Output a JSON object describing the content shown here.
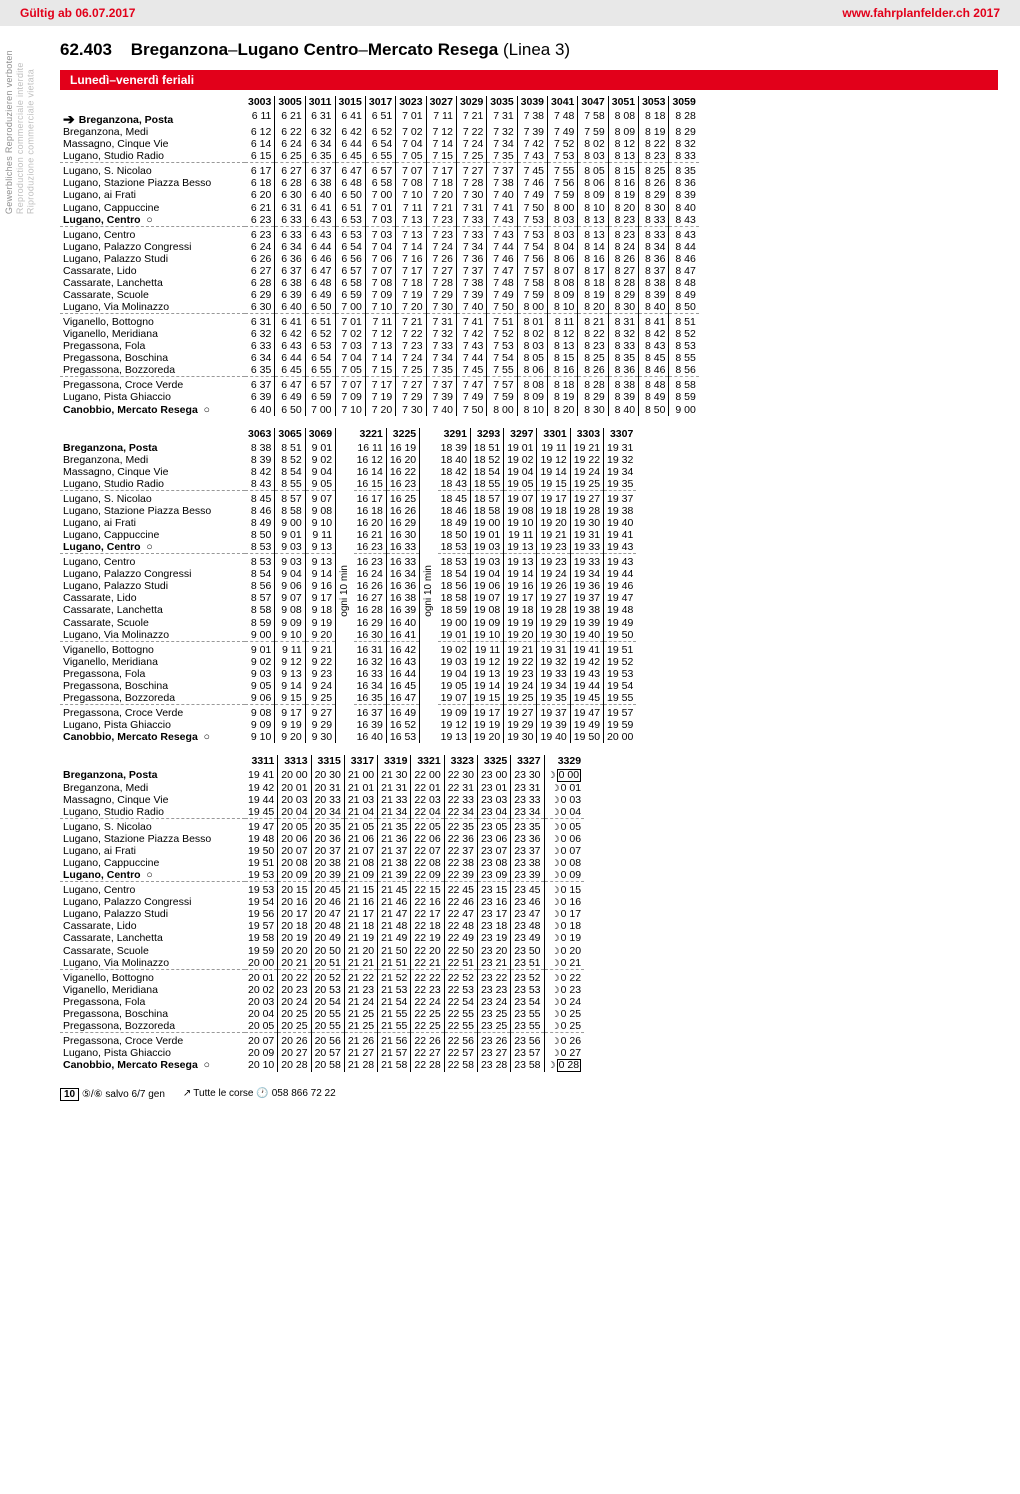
{
  "header": {
    "validity": "Gültig ab 06.07.2017",
    "url": "www.fahrplanfelder.ch 2017"
  },
  "side": {
    "de": "Gewerbliches Reproduzieren verboten",
    "fr": "Reproduction commerciale interdite",
    "it": "Riproduzione commerciale vietata"
  },
  "line": {
    "number": "62.403",
    "name_bold1": "Breganzona",
    "dash": "–",
    "name_bold2": "Lugano Centro",
    "dash2": "–",
    "name_bold3": "Mercato Resega",
    "suffix": " (Linea 3)"
  },
  "day_heading": "Lunedì–venerdì feriali",
  "stops": [
    {
      "name": "Breganzona, Posta",
      "bold": true,
      "first": true,
      "arrow": true
    },
    {
      "name": "Breganzona, Medi"
    },
    {
      "name": "Massagno, Cinque Vie"
    },
    {
      "name": "Lugano, Studio Radio"
    },
    {
      "name": "Lugano, S. Nicolao",
      "sep": true
    },
    {
      "name": "Lugano, Stazione Piazza Besso"
    },
    {
      "name": "Lugano, ai Frati"
    },
    {
      "name": "Lugano, Cappuccine"
    },
    {
      "name": "Lugano, Centro",
      "bold": true,
      "circ": true
    },
    {
      "name": "Lugano, Centro",
      "sep": true
    },
    {
      "name": "Lugano, Palazzo Congressi"
    },
    {
      "name": "Lugano, Palazzo Studi"
    },
    {
      "name": "Cassarate, Lido"
    },
    {
      "name": "Cassarate, Lanchetta"
    },
    {
      "name": "Cassarate, Scuole"
    },
    {
      "name": "Lugano, Via Molinazzo"
    },
    {
      "name": "Viganello, Bottogno",
      "sep": true
    },
    {
      "name": "Viganello, Meridiana"
    },
    {
      "name": "Pregassona, Fola"
    },
    {
      "name": "Pregassona, Boschina"
    },
    {
      "name": "Pregassona, Bozzoreda"
    },
    {
      "name": "Pregassona, Croce Verde",
      "sep": true
    },
    {
      "name": "Lugano, Pista Ghiaccio"
    },
    {
      "name": "Canobbio, Mercato Resega",
      "bold": true,
      "circ": true
    }
  ],
  "block1": {
    "cols": [
      "3003",
      "3005",
      "3011",
      "3015",
      "3017",
      "3023",
      "3027",
      "3029",
      "3035",
      "3039",
      "3041",
      "3047",
      "3051",
      "3053",
      "3059"
    ],
    "rows": [
      [
        "6 11",
        "6 21",
        "6 31",
        "6 41",
        "6 51",
        "7 01",
        "7 11",
        "7 21",
        "7 31",
        "7 38",
        "7 48",
        "7 58",
        "8 08",
        "8 18",
        "8 28"
      ],
      [
        "6 12",
        "6 22",
        "6 32",
        "6 42",
        "6 52",
        "7 02",
        "7 12",
        "7 22",
        "7 32",
        "7 39",
        "7 49",
        "7 59",
        "8 09",
        "8 19",
        "8 29"
      ],
      [
        "6 14",
        "6 24",
        "6 34",
        "6 44",
        "6 54",
        "7 04",
        "7 14",
        "7 24",
        "7 34",
        "7 42",
        "7 52",
        "8 02",
        "8 12",
        "8 22",
        "8 32"
      ],
      [
        "6 15",
        "6 25",
        "6 35",
        "6 45",
        "6 55",
        "7 05",
        "7 15",
        "7 25",
        "7 35",
        "7 43",
        "7 53",
        "8 03",
        "8 13",
        "8 23",
        "8 33"
      ],
      [
        "6 17",
        "6 27",
        "6 37",
        "6 47",
        "6 57",
        "7 07",
        "7 17",
        "7 27",
        "7 37",
        "7 45",
        "7 55",
        "8 05",
        "8 15",
        "8 25",
        "8 35"
      ],
      [
        "6 18",
        "6 28",
        "6 38",
        "6 48",
        "6 58",
        "7 08",
        "7 18",
        "7 28",
        "7 38",
        "7 46",
        "7 56",
        "8 06",
        "8 16",
        "8 26",
        "8 36"
      ],
      [
        "6 20",
        "6 30",
        "6 40",
        "6 50",
        "7 00",
        "7 10",
        "7 20",
        "7 30",
        "7 40",
        "7 49",
        "7 59",
        "8 09",
        "8 19",
        "8 29",
        "8 39"
      ],
      [
        "6 21",
        "6 31",
        "6 41",
        "6 51",
        "7 01",
        "7 11",
        "7 21",
        "7 31",
        "7 41",
        "7 50",
        "8 00",
        "8 10",
        "8 20",
        "8 30",
        "8 40"
      ],
      [
        "6 23",
        "6 33",
        "6 43",
        "6 53",
        "7 03",
        "7 13",
        "7 23",
        "7 33",
        "7 43",
        "7 53",
        "8 03",
        "8 13",
        "8 23",
        "8 33",
        "8 43"
      ],
      [
        "6 23",
        "6 33",
        "6 43",
        "6 53",
        "7 03",
        "7 13",
        "7 23",
        "7 33",
        "7 43",
        "7 53",
        "8 03",
        "8 13",
        "8 23",
        "8 33",
        "8 43"
      ],
      [
        "6 24",
        "6 34",
        "6 44",
        "6 54",
        "7 04",
        "7 14",
        "7 24",
        "7 34",
        "7 44",
        "7 54",
        "8 04",
        "8 14",
        "8 24",
        "8 34",
        "8 44"
      ],
      [
        "6 26",
        "6 36",
        "6 46",
        "6 56",
        "7 06",
        "7 16",
        "7 26",
        "7 36",
        "7 46",
        "7 56",
        "8 06",
        "8 16",
        "8 26",
        "8 36",
        "8 46"
      ],
      [
        "6 27",
        "6 37",
        "6 47",
        "6 57",
        "7 07",
        "7 17",
        "7 27",
        "7 37",
        "7 47",
        "7 57",
        "8 07",
        "8 17",
        "8 27",
        "8 37",
        "8 47"
      ],
      [
        "6 28",
        "6 38",
        "6 48",
        "6 58",
        "7 08",
        "7 18",
        "7 28",
        "7 38",
        "7 48",
        "7 58",
        "8 08",
        "8 18",
        "8 28",
        "8 38",
        "8 48"
      ],
      [
        "6 29",
        "6 39",
        "6 49",
        "6 59",
        "7 09",
        "7 19",
        "7 29",
        "7 39",
        "7 49",
        "7 59",
        "8 09",
        "8 19",
        "8 29",
        "8 39",
        "8 49"
      ],
      [
        "6 30",
        "6 40",
        "6 50",
        "7 00",
        "7 10",
        "7 20",
        "7 30",
        "7 40",
        "7 50",
        "8 00",
        "8 10",
        "8 20",
        "8 30",
        "8 40",
        "8 50"
      ],
      [
        "6 31",
        "6 41",
        "6 51",
        "7 01",
        "7 11",
        "7 21",
        "7 31",
        "7 41",
        "7 51",
        "8 01",
        "8 11",
        "8 21",
        "8 31",
        "8 41",
        "8 51"
      ],
      [
        "6 32",
        "6 42",
        "6 52",
        "7 02",
        "7 12",
        "7 22",
        "7 32",
        "7 42",
        "7 52",
        "8 02",
        "8 12",
        "8 22",
        "8 32",
        "8 42",
        "8 52"
      ],
      [
        "6 33",
        "6 43",
        "6 53",
        "7 03",
        "7 13",
        "7 23",
        "7 33",
        "7 43",
        "7 53",
        "8 03",
        "8 13",
        "8 23",
        "8 33",
        "8 43",
        "8 53"
      ],
      [
        "6 34",
        "6 44",
        "6 54",
        "7 04",
        "7 14",
        "7 24",
        "7 34",
        "7 44",
        "7 54",
        "8 05",
        "8 15",
        "8 25",
        "8 35",
        "8 45",
        "8 55"
      ],
      [
        "6 35",
        "6 45",
        "6 55",
        "7 05",
        "7 15",
        "7 25",
        "7 35",
        "7 45",
        "7 55",
        "8 06",
        "8 16",
        "8 26",
        "8 36",
        "8 46",
        "8 56"
      ],
      [
        "6 37",
        "6 47",
        "6 57",
        "7 07",
        "7 17",
        "7 27",
        "7 37",
        "7 47",
        "7 57",
        "8 08",
        "8 18",
        "8 28",
        "8 38",
        "8 48",
        "8 58"
      ],
      [
        "6 39",
        "6 49",
        "6 59",
        "7 09",
        "7 19",
        "7 29",
        "7 39",
        "7 49",
        "7 59",
        "8 09",
        "8 19",
        "8 29",
        "8 39",
        "8 49",
        "8 59"
      ],
      [
        "6 40",
        "6 50",
        "7 00",
        "7 10",
        "7 20",
        "7 30",
        "7 40",
        "7 50",
        "8 00",
        "8 10",
        "8 20",
        "8 30",
        "8 40",
        "8 50",
        "9 00"
      ]
    ]
  },
  "block2": {
    "cols": [
      "3063",
      "3065",
      "3069",
      "",
      "3221",
      "3225",
      "",
      "3291",
      "3293",
      "3297",
      "3301",
      "3303",
      "3307"
    ],
    "ogni_text": "ogni 10 min",
    "rows": [
      [
        "8 38",
        "8 51",
        "9 01",
        "",
        "16 11",
        "16 19",
        "",
        "18 39",
        "18 51",
        "19 01",
        "19 11",
        "19 21",
        "19 31"
      ],
      [
        "8 39",
        "8 52",
        "9 02",
        "",
        "16 12",
        "16 20",
        "",
        "18 40",
        "18 52",
        "19 02",
        "19 12",
        "19 22",
        "19 32"
      ],
      [
        "8 42",
        "8 54",
        "9 04",
        "",
        "16 14",
        "16 22",
        "",
        "18 42",
        "18 54",
        "19 04",
        "19 14",
        "19 24",
        "19 34"
      ],
      [
        "8 43",
        "8 55",
        "9 05",
        "",
        "16 15",
        "16 23",
        "",
        "18 43",
        "18 55",
        "19 05",
        "19 15",
        "19 25",
        "19 35"
      ],
      [
        "8 45",
        "8 57",
        "9 07",
        "",
        "16 17",
        "16 25",
        "",
        "18 45",
        "18 57",
        "19 07",
        "19 17",
        "19 27",
        "19 37"
      ],
      [
        "8 46",
        "8 58",
        "9 08",
        "",
        "16 18",
        "16 26",
        "",
        "18 46",
        "18 58",
        "19 08",
        "19 18",
        "19 28",
        "19 38"
      ],
      [
        "8 49",
        "9 00",
        "9 10",
        "",
        "16 20",
        "16 29",
        "",
        "18 49",
        "19 00",
        "19 10",
        "19 20",
        "19 30",
        "19 40"
      ],
      [
        "8 50",
        "9 01",
        "9 11",
        "",
        "16 21",
        "16 30",
        "",
        "18 50",
        "19 01",
        "19 11",
        "19 21",
        "19 31",
        "19 41"
      ],
      [
        "8 53",
        "9 03",
        "9 13",
        "",
        "16 23",
        "16 33",
        "",
        "18 53",
        "19 03",
        "19 13",
        "19 23",
        "19 33",
        "19 43"
      ],
      [
        "8 53",
        "9 03",
        "9 13",
        "",
        "16 23",
        "16 33",
        "",
        "18 53",
        "19 03",
        "19 13",
        "19 23",
        "19 33",
        "19 43"
      ],
      [
        "8 54",
        "9 04",
        "9 14",
        "",
        "16 24",
        "16 34",
        "",
        "18 54",
        "19 04",
        "19 14",
        "19 24",
        "19 34",
        "19 44"
      ],
      [
        "8 56",
        "9 06",
        "9 16",
        "",
        "16 26",
        "16 36",
        "",
        "18 56",
        "19 06",
        "19 16",
        "19 26",
        "19 36",
        "19 46"
      ],
      [
        "8 57",
        "9 07",
        "9 17",
        "",
        "16 27",
        "16 38",
        "",
        "18 58",
        "19 07",
        "19 17",
        "19 27",
        "19 37",
        "19 47"
      ],
      [
        "8 58",
        "9 08",
        "9 18",
        "",
        "16 28",
        "16 39",
        "",
        "18 59",
        "19 08",
        "19 18",
        "19 28",
        "19 38",
        "19 48"
      ],
      [
        "8 59",
        "9 09",
        "9 19",
        "",
        "16 29",
        "16 40",
        "",
        "19 00",
        "19 09",
        "19 19",
        "19 29",
        "19 39",
        "19 49"
      ],
      [
        "9 00",
        "9 10",
        "9 20",
        "",
        "16 30",
        "16 41",
        "",
        "19 01",
        "19 10",
        "19 20",
        "19 30",
        "19 40",
        "19 50"
      ],
      [
        "9 01",
        "9 11",
        "9 21",
        "",
        "16 31",
        "16 42",
        "",
        "19 02",
        "19 11",
        "19 21",
        "19 31",
        "19 41",
        "19 51"
      ],
      [
        "9 02",
        "9 12",
        "9 22",
        "",
        "16 32",
        "16 43",
        "",
        "19 03",
        "19 12",
        "19 22",
        "19 32",
        "19 42",
        "19 52"
      ],
      [
        "9 03",
        "9 13",
        "9 23",
        "",
        "16 33",
        "16 44",
        "",
        "19 04",
        "19 13",
        "19 23",
        "19 33",
        "19 43",
        "19 53"
      ],
      [
        "9 05",
        "9 14",
        "9 24",
        "",
        "16 34",
        "16 45",
        "",
        "19 05",
        "19 14",
        "19 24",
        "19 34",
        "19 44",
        "19 54"
      ],
      [
        "9 06",
        "9 15",
        "9 25",
        "",
        "16 35",
        "16 47",
        "",
        "19 07",
        "19 15",
        "19 25",
        "19 35",
        "19 45",
        "19 55"
      ],
      [
        "9 08",
        "9 17",
        "9 27",
        "",
        "16 37",
        "16 49",
        "",
        "19 09",
        "19 17",
        "19 27",
        "19 37",
        "19 47",
        "19 57"
      ],
      [
        "9 09",
        "9 19",
        "9 29",
        "",
        "16 39",
        "16 52",
        "",
        "19 12",
        "19 19",
        "19 29",
        "19 39",
        "19 49",
        "19 59"
      ],
      [
        "9 10",
        "9 20",
        "9 30",
        "",
        "16 40",
        "16 53",
        "",
        "19 13",
        "19 20",
        "19 30",
        "19 40",
        "19 50",
        "20 00"
      ]
    ]
  },
  "block3": {
    "cols": [
      "3311",
      "3313",
      "3315",
      "3317",
      "3319",
      "3321",
      "3323",
      "3325",
      "3327",
      "3329"
    ],
    "rows": [
      [
        "19 41",
        "20 00",
        "20 30",
        "21 00",
        "21 30",
        "22 00",
        "22 30",
        "23 00",
        "23 30",
        "0 00"
      ],
      [
        "19 42",
        "20 01",
        "20 31",
        "21 01",
        "21 31",
        "22 01",
        "22 31",
        "23 01",
        "23 31",
        "0 01"
      ],
      [
        "19 44",
        "20 03",
        "20 33",
        "21 03",
        "21 33",
        "22 03",
        "22 33",
        "23 03",
        "23 33",
        "0 03"
      ],
      [
        "19 45",
        "20 04",
        "20 34",
        "21 04",
        "21 34",
        "22 04",
        "22 34",
        "23 04",
        "23 34",
        "0 04"
      ],
      [
        "19 47",
        "20 05",
        "20 35",
        "21 05",
        "21 35",
        "22 05",
        "22 35",
        "23 05",
        "23 35",
        "0 05"
      ],
      [
        "19 48",
        "20 06",
        "20 36",
        "21 06",
        "21 36",
        "22 06",
        "22 36",
        "23 06",
        "23 36",
        "0 06"
      ],
      [
        "19 50",
        "20 07",
        "20 37",
        "21 07",
        "21 37",
        "22 07",
        "22 37",
        "23 07",
        "23 37",
        "0 07"
      ],
      [
        "19 51",
        "20 08",
        "20 38",
        "21 08",
        "21 38",
        "22 08",
        "22 38",
        "23 08",
        "23 38",
        "0 08"
      ],
      [
        "19 53",
        "20 09",
        "20 39",
        "21 09",
        "21 39",
        "22 09",
        "22 39",
        "23 09",
        "23 39",
        "0 09"
      ],
      [
        "19 53",
        "20 15",
        "20 45",
        "21 15",
        "21 45",
        "22 15",
        "22 45",
        "23 15",
        "23 45",
        "0 15"
      ],
      [
        "19 54",
        "20 16",
        "20 46",
        "21 16",
        "21 46",
        "22 16",
        "22 46",
        "23 16",
        "23 46",
        "0 16"
      ],
      [
        "19 56",
        "20 17",
        "20 47",
        "21 17",
        "21 47",
        "22 17",
        "22 47",
        "23 17",
        "23 47",
        "0 17"
      ],
      [
        "19 57",
        "20 18",
        "20 48",
        "21 18",
        "21 48",
        "22 18",
        "22 48",
        "23 18",
        "23 48",
        "0 18"
      ],
      [
        "19 58",
        "20 19",
        "20 49",
        "21 19",
        "21 49",
        "22 19",
        "22 49",
        "23 19",
        "23 49",
        "0 19"
      ],
      [
        "19 59",
        "20 20",
        "20 50",
        "21 20",
        "21 50",
        "22 20",
        "22 50",
        "23 20",
        "23 50",
        "0 20"
      ],
      [
        "20 00",
        "20 21",
        "20 51",
        "21 21",
        "21 51",
        "22 21",
        "22 51",
        "23 21",
        "23 51",
        "0 21"
      ],
      [
        "20 01",
        "20 22",
        "20 52",
        "21 22",
        "21 52",
        "22 22",
        "22 52",
        "23 22",
        "23 52",
        "0 22"
      ],
      [
        "20 02",
        "20 23",
        "20 53",
        "21 23",
        "21 53",
        "22 23",
        "22 53",
        "23 23",
        "23 53",
        "0 23"
      ],
      [
        "20 03",
        "20 24",
        "20 54",
        "21 24",
        "21 54",
        "22 24",
        "22 54",
        "23 24",
        "23 54",
        "0 24"
      ],
      [
        "20 04",
        "20 25",
        "20 55",
        "21 25",
        "21 55",
        "22 25",
        "22 55",
        "23 25",
        "23 55",
        "0 25"
      ],
      [
        "20 05",
        "20 25",
        "20 55",
        "21 25",
        "21 55",
        "22 25",
        "22 55",
        "23 25",
        "23 55",
        "0 25"
      ],
      [
        "20 07",
        "20 26",
        "20 56",
        "21 26",
        "21 56",
        "22 26",
        "22 56",
        "23 26",
        "23 56",
        "0 26"
      ],
      [
        "20 09",
        "20 27",
        "20 57",
        "21 27",
        "21 57",
        "22 27",
        "22 57",
        "23 27",
        "23 57",
        "0 27"
      ],
      [
        "20 10",
        "20 28",
        "20 58",
        "21 28",
        "21 58",
        "22 28",
        "22 58",
        "23 28",
        "23 58",
        "0 28"
      ]
    ],
    "moon_col": 9,
    "box_row0": [
      0
    ],
    "box_row23": [
      23
    ]
  },
  "footer": {
    "note1_sym": "10",
    "note1": "⑤/⑥ salvo 6/7 gen",
    "note2": "Tutte le corse",
    "note2_tel": "058 866 72 22"
  }
}
